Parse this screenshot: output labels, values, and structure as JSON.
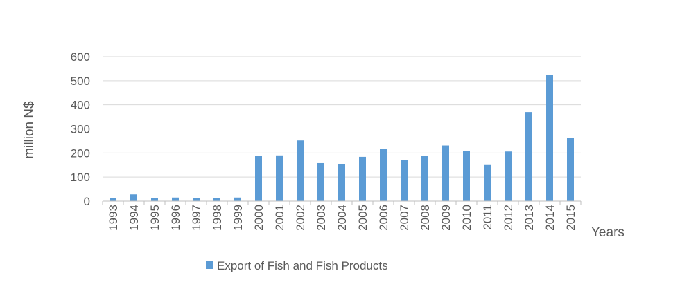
{
  "chart_data": {
    "type": "bar",
    "title": "",
    "ylabel": "million N$",
    "xlabel": "Years",
    "ylim": [
      0,
      600
    ],
    "yticks": [
      0,
      100,
      200,
      300,
      400,
      500,
      600
    ],
    "grid": true,
    "legend_position": "bottom",
    "categories": [
      "1993",
      "1994",
      "1995",
      "1996",
      "1997",
      "1998",
      "1999",
      "2000",
      "2001",
      "2002",
      "2003",
      "2004",
      "2005",
      "2006",
      "2007",
      "2008",
      "2009",
      "2010",
      "2011",
      "2012",
      "2013",
      "2014",
      "2015"
    ],
    "series": [
      {
        "name": "Export of Fish and Fish Products",
        "color": "#5b9bd5",
        "values": [
          12,
          28,
          14,
          15,
          12,
          14,
          15,
          187,
          190,
          252,
          158,
          155,
          184,
          217,
          171,
          187,
          231,
          207,
          150,
          206,
          370,
          525,
          263
        ]
      }
    ]
  }
}
